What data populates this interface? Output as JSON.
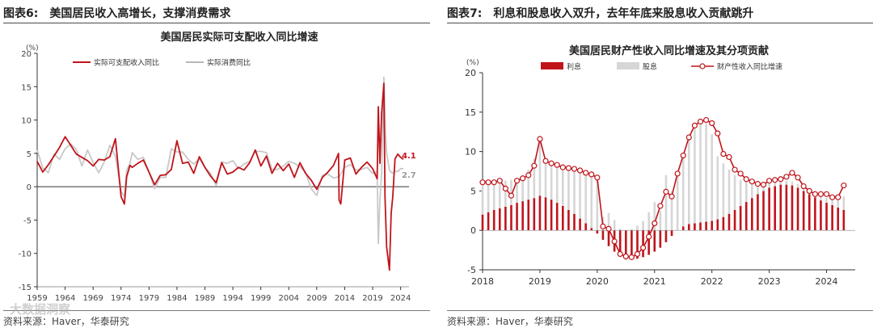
{
  "colors": {
    "red": "#c0141b",
    "gray": "#c8c8c8",
    "axis": "#333333"
  },
  "left": {
    "header_label": "图表6:",
    "header_text": "美国居民收入高增长，支撑消费需求",
    "source": "资料来源：Haver，华泰研究",
    "watermark": "大数据洞察"
  },
  "right": {
    "header_label": "图表7:",
    "header_text": "利息和股息收入双升，去年年底来股息收入贡献跳升",
    "source": "资料来源：Haver，华泰研究"
  },
  "chart_data": [
    {
      "type": "line",
      "title": "美国居民实际可支配收入同比增速",
      "ylabel": "(%)",
      "xlabel": "",
      "ylim": [
        -15,
        20
      ],
      "yticks": [
        "-15",
        "-10",
        "-5",
        "0",
        "5",
        "10",
        "15",
        "20"
      ],
      "xlim": [
        1959,
        2025.5
      ],
      "xticks": [
        "1959",
        "1964",
        "1969",
        "1974",
        "1979",
        "1984",
        "1989",
        "1994",
        "1999",
        "2004",
        "2009",
        "2014",
        "2019",
        "2024"
      ],
      "legend_position": "top-left",
      "end_labels": [
        "4.1",
        "2.7"
      ],
      "series": [
        {
          "name": "实际可支配收入同比",
          "x": [
            1959,
            1960,
            1961,
            1962,
            1963,
            1964,
            1965,
            1966,
            1967,
            1968,
            1969,
            1970,
            1971,
            1972,
            1973,
            1974,
            1974.6,
            1975,
            1975.6,
            1976,
            1977,
            1978,
            1979,
            1980,
            1981,
            1982,
            1983,
            1984,
            1985,
            1986,
            1987,
            1988,
            1989,
            1990,
            1991,
            1992,
            1993,
            1994,
            1995,
            1996,
            1997,
            1998,
            1999,
            2000,
            2001,
            2002,
            2003,
            2004,
            2005,
            2006,
            2007,
            2008,
            2009,
            2010,
            2011,
            2012,
            2012.9,
            2013,
            2013.3,
            2014,
            2015,
            2016,
            2017,
            2018,
            2019,
            2019.8,
            2020,
            2020.3,
            2020.6,
            2021,
            2021.2,
            2021.5,
            2022,
            2022.3,
            2022.6,
            2023,
            2023.5,
            2024,
            2024.5
          ],
          "values": [
            3.8,
            2.2,
            3.3,
            4.6,
            5.9,
            7.5,
            6.2,
            4.9,
            4.4,
            3.9,
            3.1,
            4.1,
            4.0,
            4.5,
            7.2,
            -1.5,
            -2.6,
            1.5,
            3.2,
            2.9,
            3.5,
            4.0,
            2.2,
            0.3,
            1.7,
            1.8,
            2.6,
            6.9,
            3.5,
            3.7,
            2.0,
            4.5,
            2.9,
            1.6,
            0.6,
            3.6,
            1.9,
            2.2,
            2.9,
            2.5,
            3.6,
            5.5,
            3.1,
            4.6,
            2.0,
            3.5,
            2.4,
            3.4,
            1.4,
            3.6,
            2.0,
            1.0,
            -0.4,
            1.4,
            2.2,
            3.2,
            5.0,
            -2.0,
            -2.6,
            4.0,
            4.3,
            1.9,
            2.9,
            3.7,
            2.7,
            1.2,
            12.0,
            3.5,
            11.0,
            15.5,
            -1.5,
            -9.0,
            -12.5,
            -4.0,
            -1.5,
            4.2,
            4.9,
            4.4,
            4.1
          ]
        },
        {
          "name": "实际消费同比",
          "x": [
            1959,
            1960,
            1961,
            1962,
            1963,
            1964,
            1965,
            1966,
            1967,
            1968,
            1969,
            1970,
            1971,
            1972,
            1973,
            1974,
            1974.6,
            1975,
            1975.6,
            1976,
            1977,
            1978,
            1979,
            1980,
            1981,
            1982,
            1983,
            1984,
            1985,
            1986,
            1987,
            1988,
            1989,
            1990,
            1991,
            1992,
            1993,
            1994,
            1995,
            1996,
            1997,
            1998,
            1999,
            2000,
            2001,
            2002,
            2003,
            2004,
            2005,
            2006,
            2007,
            2008,
            2009,
            2010,
            2011,
            2012,
            2013,
            2014,
            2015,
            2016,
            2017,
            2018,
            2019,
            2019.8,
            2020,
            2020.3,
            2020.6,
            2021,
            2021.3,
            2021.5,
            2022,
            2022.5,
            2023,
            2023.5,
            2024,
            2024.5
          ],
          "values": [
            5.5,
            2.8,
            2.1,
            4.9,
            4.1,
            5.7,
            6.4,
            5.6,
            3.1,
            5.5,
            3.6,
            2.1,
            3.7,
            6.2,
            4.6,
            -0.7,
            -1.5,
            2.5,
            3.5,
            5.1,
            4.1,
            4.4,
            2.2,
            -0.3,
            1.4,
            1.4,
            5.7,
            5.2,
            5.2,
            4.1,
            3.4,
            4.2,
            2.9,
            2.0,
            0.2,
            3.7,
            3.5,
            3.9,
            2.7,
            3.4,
            3.8,
            5.3,
            5.3,
            5.1,
            2.6,
            2.6,
            3.1,
            3.8,
            3.5,
            3.0,
            2.2,
            -0.3,
            -1.3,
            1.7,
            1.9,
            1.3,
            1.5,
            2.9,
            3.3,
            2.5,
            2.6,
            2.9,
            2.0,
            2.2,
            -8.5,
            -2.0,
            2.0,
            16.4,
            8.0,
            5.0,
            2.5,
            2.0,
            2.3,
            2.3,
            2.7,
            2.7
          ]
        }
      ]
    },
    {
      "type": "bar",
      "title": "美国居民财产性收入同比增速及其分项贡献",
      "ylabel": "(%)",
      "xlabel": "",
      "ylim": [
        -5,
        20
      ],
      "yticks": [
        "-5",
        "0",
        "5",
        "10",
        "15",
        "20"
      ],
      "xlim": [
        2018,
        2024.5
      ],
      "xticks": [
        "2018",
        "2019",
        "2020",
        "2021",
        "2022",
        "2023",
        "2024"
      ],
      "legend_position": "top",
      "series": [
        {
          "name": "利息",
          "kind": "bar",
          "x": [
            2018.0,
            2018.1,
            2018.2,
            2018.3,
            2018.4,
            2018.5,
            2018.6,
            2018.7,
            2018.8,
            2018.9,
            2019.0,
            2019.1,
            2019.2,
            2019.3,
            2019.4,
            2019.5,
            2019.6,
            2019.7,
            2019.8,
            2019.9,
            2020.0,
            2020.1,
            2020.2,
            2020.3,
            2020.4,
            2020.5,
            2020.6,
            2020.7,
            2020.8,
            2020.9,
            2021.0,
            2021.1,
            2021.2,
            2021.3,
            2021.4,
            2021.5,
            2021.6,
            2021.7,
            2021.8,
            2021.9,
            2022.0,
            2022.1,
            2022.2,
            2022.3,
            2022.4,
            2022.5,
            2022.6,
            2022.7,
            2022.8,
            2022.9,
            2023.0,
            2023.1,
            2023.2,
            2023.3,
            2023.4,
            2023.5,
            2023.6,
            2023.7,
            2023.8,
            2023.9,
            2024.0,
            2024.1,
            2024.2,
            2024.3
          ],
          "values": [
            2.0,
            2.3,
            2.6,
            2.8,
            3.0,
            3.2,
            3.5,
            3.7,
            3.9,
            4.1,
            4.4,
            4.2,
            3.9,
            3.5,
            3.1,
            2.6,
            2.1,
            1.5,
            0.9,
            0.3,
            -0.4,
            -1.2,
            -2.0,
            -2.7,
            -3.2,
            -3.5,
            -3.6,
            -3.6,
            -3.4,
            -3.1,
            -2.7,
            -2.2,
            -1.5,
            -0.7,
            0.0,
            0.5,
            0.8,
            0.9,
            1.0,
            1.1,
            1.2,
            1.4,
            1.7,
            2.1,
            2.6,
            3.1,
            3.6,
            4.1,
            4.6,
            5.0,
            5.4,
            5.6,
            5.8,
            5.8,
            5.7,
            5.4,
            5.0,
            4.6,
            4.2,
            3.8,
            3.5,
            3.2,
            2.9,
            2.6
          ]
        },
        {
          "name": "股息",
          "kind": "bar",
          "x": [
            2018.0,
            2018.1,
            2018.2,
            2018.3,
            2018.4,
            2018.5,
            2018.6,
            2018.7,
            2018.8,
            2018.9,
            2019.0,
            2019.1,
            2019.2,
            2019.3,
            2019.4,
            2019.5,
            2019.6,
            2019.7,
            2019.8,
            2019.9,
            2020.0,
            2020.1,
            2020.2,
            2020.3,
            2020.4,
            2020.5,
            2020.6,
            2020.7,
            2020.8,
            2020.9,
            2021.0,
            2021.1,
            2021.2,
            2021.3,
            2021.4,
            2021.5,
            2021.6,
            2021.7,
            2021.8,
            2021.9,
            2022.0,
            2022.1,
            2022.2,
            2022.3,
            2022.4,
            2022.5,
            2022.6,
            2022.7,
            2022.8,
            2022.9,
            2023.0,
            2023.1,
            2023.2,
            2023.3,
            2023.4,
            2023.5,
            2023.6,
            2023.7,
            2023.8,
            2023.9,
            2024.0,
            2024.1,
            2024.2,
            2024.3
          ],
          "values": [
            4.1,
            3.8,
            3.5,
            3.5,
            3.3,
            3.2,
            3.1,
            3.3,
            3.8,
            5.0,
            7.2,
            4.6,
            4.5,
            4.8,
            4.9,
            5.3,
            5.7,
            6.1,
            6.4,
            6.8,
            7.1,
            1.7,
            2.2,
            1.3,
            0.2,
            -0.3,
            0.2,
            0.6,
            1.2,
            2.3,
            3.6,
            2.5,
            7.0,
            5.0,
            7.3,
            9.0,
            11.0,
            12.5,
            13.0,
            12.5,
            11.0,
            8.0,
            6.8,
            5.6,
            4.4,
            3.3,
            2.6,
            1.9,
            1.1,
            0.8,
            0.7,
            0.6,
            0.6,
            0.5,
            0.5,
            0.5,
            0.6,
            0.7,
            0.8,
            0.7,
            0.6,
            0.8,
            1.3,
            1.7
          ]
        },
        {
          "name": "财产性收入同比增速",
          "kind": "line",
          "x": [
            2018.0,
            2018.1,
            2018.2,
            2018.3,
            2018.4,
            2018.5,
            2018.6,
            2018.7,
            2018.8,
            2018.9,
            2019.0,
            2019.1,
            2019.2,
            2019.3,
            2019.4,
            2019.5,
            2019.6,
            2019.7,
            2019.8,
            2019.9,
            2020.0,
            2020.1,
            2020.2,
            2020.3,
            2020.4,
            2020.5,
            2020.6,
            2020.7,
            2020.8,
            2020.9,
            2021.0,
            2021.1,
            2021.2,
            2021.3,
            2021.4,
            2021.5,
            2021.6,
            2021.7,
            2021.8,
            2021.9,
            2022.0,
            2022.1,
            2022.2,
            2022.3,
            2022.4,
            2022.5,
            2022.6,
            2022.7,
            2022.8,
            2022.9,
            2023.0,
            2023.1,
            2023.2,
            2023.3,
            2023.4,
            2023.5,
            2023.6,
            2023.7,
            2023.8,
            2023.9,
            2024.0,
            2024.1,
            2024.2,
            2024.3
          ],
          "values": [
            6.1,
            6.1,
            6.1,
            6.3,
            5.3,
            4.4,
            6.3,
            6.6,
            7.0,
            8.2,
            11.6,
            8.8,
            8.5,
            8.3,
            8.0,
            7.9,
            7.8,
            7.6,
            7.3,
            7.1,
            6.7,
            0.5,
            0.2,
            -1.4,
            -3.0,
            -3.3,
            -3.4,
            -3.0,
            -2.2,
            -0.8,
            0.9,
            3.1,
            4.9,
            4.3,
            7.2,
            9.5,
            11.8,
            13.3,
            13.8,
            14.0,
            13.6,
            12.3,
            9.7,
            9.3,
            7.7,
            7.2,
            6.5,
            6.2,
            5.9,
            5.8,
            6.3,
            6.4,
            6.5,
            6.8,
            7.3,
            6.7,
            5.6,
            5.0,
            4.6,
            4.6,
            4.6,
            4.2,
            4.2,
            5.7
          ]
        }
      ]
    }
  ]
}
